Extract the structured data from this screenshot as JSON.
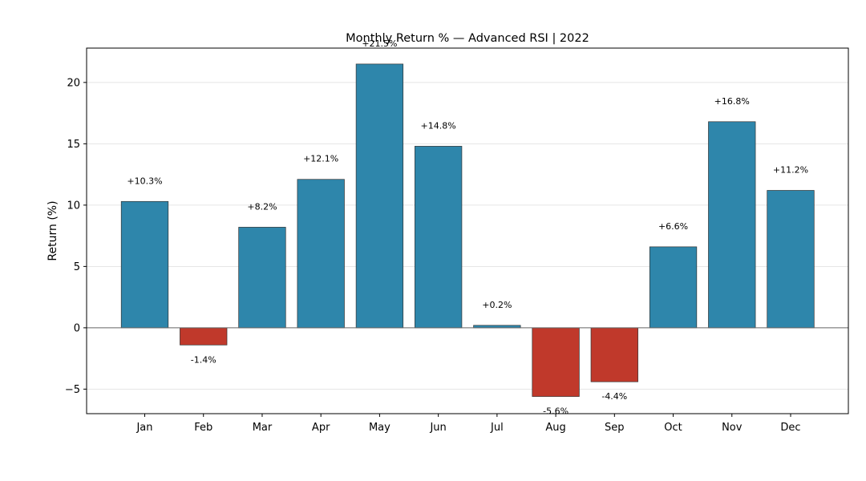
{
  "chart_data": {
    "type": "bar",
    "title": "Monthly Return % — Advanced RSI | 2022",
    "xlabel": "",
    "ylabel": "Return (%)",
    "categories": [
      "Jan",
      "Feb",
      "Mar",
      "Apr",
      "May",
      "Jun",
      "Jul",
      "Aug",
      "Sep",
      "Oct",
      "Nov",
      "Dec"
    ],
    "values": [
      10.3,
      -1.4,
      8.2,
      12.1,
      21.5,
      14.8,
      0.2,
      -5.6,
      -4.4,
      6.6,
      16.8,
      11.2
    ],
    "data_labels": [
      "+10.3%",
      "-1.4%",
      "+8.2%",
      "+12.1%",
      "+21.5%",
      "+14.8%",
      "+0.2%",
      "-5.6%",
      "-4.4%",
      "+6.6%",
      "+16.8%",
      "+11.2%"
    ],
    "ylim": [
      -7,
      22.8
    ],
    "yticks": [
      -5,
      0,
      5,
      10,
      15,
      20
    ],
    "ytick_labels": [
      "−5",
      "0",
      "5",
      "10",
      "15",
      "20"
    ],
    "grid": "horizontal",
    "legend": "none",
    "colors": {
      "positive": "#2e86ab",
      "negative": "#c0392b",
      "bar_edge": "#333333",
      "zero_line": "#666666",
      "grid": "#dddddd",
      "frame": "#000000"
    }
  }
}
